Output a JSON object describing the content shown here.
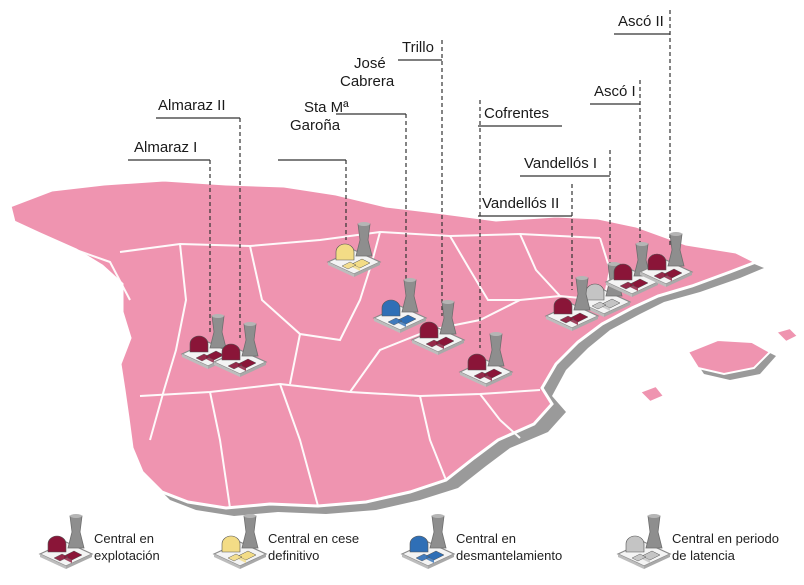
{
  "plants": [
    {
      "id": "almaraz-1",
      "lines": [
        "Almaraz I"
      ],
      "status": "operation"
    },
    {
      "id": "almaraz-2",
      "lines": [
        "Almaraz II"
      ],
      "status": "operation"
    },
    {
      "id": "garona",
      "lines": [
        "Sta Mª",
        "Garoña"
      ],
      "status": "cessation"
    },
    {
      "id": "jose-cabrera",
      "lines": [
        "José",
        "Cabrera"
      ],
      "status": "dismantling"
    },
    {
      "id": "trillo",
      "lines": [
        "Trillo"
      ],
      "status": "operation"
    },
    {
      "id": "cofrentes",
      "lines": [
        "Cofrentes"
      ],
      "status": "operation"
    },
    {
      "id": "vandellos-1",
      "lines": [
        "Vandellós I"
      ],
      "status": "latency"
    },
    {
      "id": "vandellos-2",
      "lines": [
        "Vandellós II"
      ],
      "status": "operation"
    },
    {
      "id": "asco-1",
      "lines": [
        "Ascó I"
      ],
      "status": "operation"
    },
    {
      "id": "asco-2",
      "lines": [
        "Ascó II"
      ],
      "status": "operation"
    }
  ],
  "legend": [
    {
      "status": "operation",
      "text": "Central en\nexplotación"
    },
    {
      "status": "cessation",
      "text": "Central en cese\ndefinitivo"
    },
    {
      "status": "dismantling",
      "text": "Central en\ndesmantelamiento"
    },
    {
      "status": "latency",
      "text": "Central en periodo\nde latencia"
    }
  ],
  "colors": {
    "land": "#ef94b0",
    "coast_shadow": "#9c9c9c",
    "border": "#ffffff",
    "operation": "#8a1538",
    "cessation": "#f3dc86",
    "dismantling": "#2f6fb6",
    "latency": "#c4c4c4",
    "tower": "#8e8e8e"
  }
}
